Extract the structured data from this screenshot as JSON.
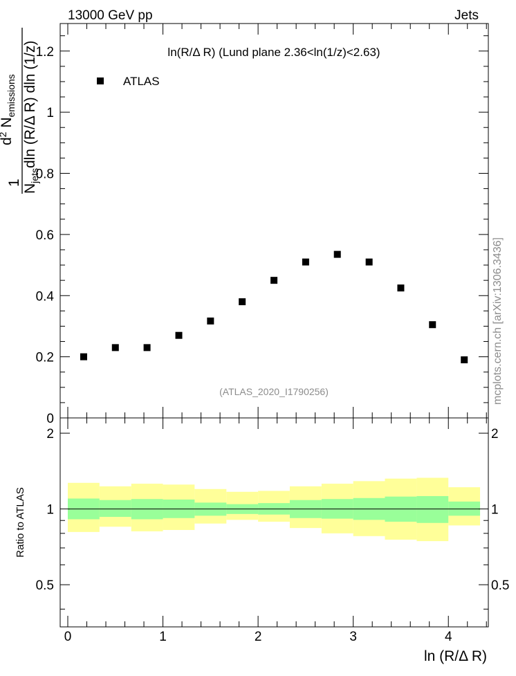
{
  "header": {
    "left": "13000 GeV pp",
    "right": "Jets"
  },
  "side_label": "mcplots.cern.ch [arXiv:1306.3436]",
  "watermark": "(ATLAS_2020_I1790256)",
  "colors": {
    "data": "#000000",
    "band_inner": "#99ff99",
    "band_outer": "#ffff99",
    "watermark": "#8c8c8c"
  },
  "chart_data": [
    {
      "type": "scatter",
      "panel": "main",
      "title": "ln(R/Δ R) (Lund plane 2.36<ln(1/z)<2.63)",
      "ylabel": {
        "prefix": "1",
        "denominator_lead": "N",
        "denominator_sub": "jets",
        "denominator_tail": "dln (R/Δ R) dln (1/z)",
        "numerator_lead": "d",
        "numerator_sup": "2",
        "numerator_mid": " N",
        "numerator_sub": "emissions"
      },
      "xlim": [
        -0.08,
        4.42
      ],
      "ylim": [
        0,
        1.29
      ],
      "y_ticks": [
        0,
        0.2,
        0.4,
        0.6,
        0.8,
        1,
        1.2
      ],
      "y_tick_labels": [
        "0",
        "0.2",
        "0.4",
        "0.6",
        "0.8",
        "1",
        "1.2"
      ],
      "legend": {
        "position": "top-left",
        "entries": [
          "ATLAS"
        ]
      },
      "series": [
        {
          "name": "ATLAS",
          "x": [
            0.167,
            0.5,
            0.833,
            1.167,
            1.5,
            1.833,
            2.167,
            2.5,
            2.833,
            3.167,
            3.5,
            3.833,
            4.167
          ],
          "y": [
            0.2,
            0.23,
            0.23,
            0.27,
            0.317,
            0.38,
            0.45,
            0.51,
            0.535,
            0.51,
            0.425,
            0.305,
            0.19
          ]
        }
      ]
    },
    {
      "type": "area",
      "panel": "ratio",
      "ylabel": "Ratio to ATLAS",
      "xlabel": "ln (R/Δ R)",
      "xlim": [
        -0.08,
        4.42
      ],
      "ylim": [
        0.34,
        2.3
      ],
      "x_ticks": [
        0,
        1,
        2,
        3,
        4
      ],
      "x_tick_labels": [
        "0",
        "1",
        "2",
        "3",
        "4"
      ],
      "y_ticks": [
        0.5,
        1,
        2
      ],
      "y_tick_labels": [
        "0.5",
        "1",
        "2"
      ],
      "reference_line": 1,
      "bin_edges": [
        0,
        0.333,
        0.667,
        1,
        1.333,
        1.667,
        2,
        2.333,
        2.667,
        3,
        3.333,
        3.667,
        4,
        4.333
      ],
      "bands": [
        {
          "name": "inner",
          "low": [
            0.91,
            0.93,
            0.91,
            0.92,
            0.94,
            0.955,
            0.95,
            0.92,
            0.915,
            0.905,
            0.89,
            0.88,
            0.94
          ],
          "high": [
            1.1,
            1.085,
            1.095,
            1.09,
            1.06,
            1.045,
            1.055,
            1.085,
            1.095,
            1.105,
            1.12,
            1.125,
            1.07
          ]
        },
        {
          "name": "outer",
          "low": [
            0.81,
            0.85,
            0.815,
            0.825,
            0.875,
            0.905,
            0.89,
            0.84,
            0.8,
            0.78,
            0.755,
            0.745,
            0.86
          ],
          "high": [
            1.27,
            1.23,
            1.26,
            1.25,
            1.2,
            1.17,
            1.18,
            1.23,
            1.26,
            1.29,
            1.32,
            1.33,
            1.22
          ]
        }
      ]
    }
  ]
}
